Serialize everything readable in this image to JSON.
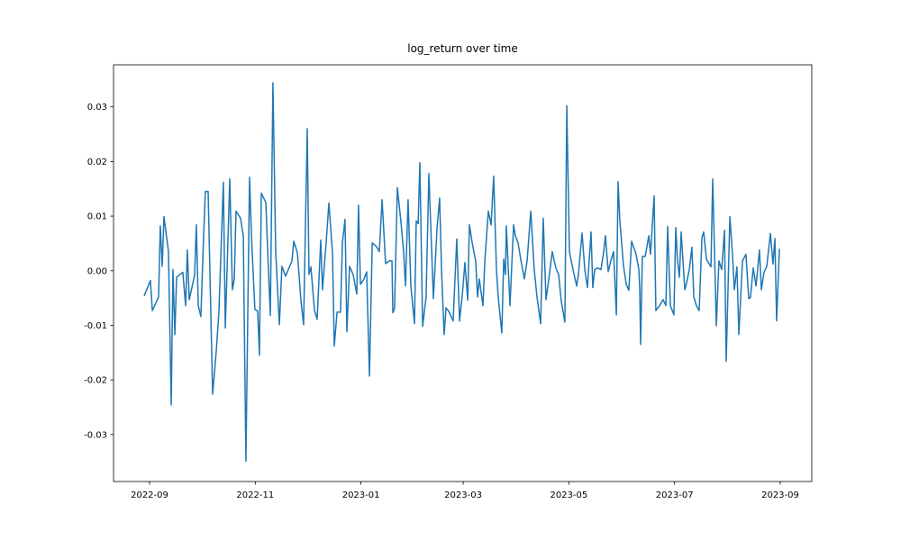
{
  "chart_data": {
    "type": "line",
    "title": "log_return over time",
    "color": "#1f77b4",
    "x": [
      19232.9,
      19236.5,
      19237.6,
      19241.2,
      19242.2,
      19243.3,
      19244.3,
      19246.9,
      19248.5,
      19249.5,
      19250.6,
      19251.6,
      19255.2,
      19256.8,
      19257.8,
      19258.9,
      19262.0,
      19263.0,
      19264.1,
      19265.6,
      19267.2,
      19268.2,
      19269.8,
      19270.8,
      19272.4,
      19274.5,
      19276.0,
      19278.6,
      19279.7,
      19281.2,
      19282.3,
      19283.8,
      19284.9,
      19285.9,
      19288.5,
      19290.1,
      19291.6,
      19293.7,
      19294.8,
      19296.8,
      19298.4,
      19299.4,
      19300.5,
      19303.1,
      19304.6,
      19305.7,
      19307.2,
      19308.8,
      19310.9,
      19312.4,
      19314.5,
      19316.1,
      19318.2,
      19319.2,
      19321.3,
      19323.4,
      19324.9,
      19327.0,
      19328.0,
      19329.1,
      19331.2,
      19332.7,
      19334.8,
      19335.8,
      19337.9,
      19339.5,
      19341.6,
      19342.6,
      19344.2,
      19346.2,
      19347.3,
      19348.8,
      19349.9,
      19351.4,
      19353.5,
      19355.6,
      19356.6,
      19357.7,
      19359.8,
      19361.3,
      19362.9,
      19364.5,
      19367.0,
      19368.6,
      19370.2,
      19372.2,
      19374.3,
      19375.9,
      19376.4,
      19377.4,
      19379.0,
      19381.1,
      19382.6,
      19383.7,
      19385.2,
      19386.8,
      19388.9,
      19389.9,
      19391.0,
      19392.0,
      19393.6,
      19395.6,
      19397.2,
      19399.8,
      19401.9,
      19403.4,
      19404.5,
      19406.0,
      19407.1,
      19408.6,
      19411.2,
      19413.3,
      19414.9,
      19416.4,
      19418.0,
      19419.6,
      19420.6,
      19422.2,
      19424.2,
      19425.3,
      19426.3,
      19428.4,
      19429.5,
      19431.5,
      19433.1,
      19434.6,
      19436.2,
      19437.2,
      19439.3,
      19440.4,
      19441.4,
      19441.9,
      19444.0,
      19446.1,
      19447.1,
      19448.7,
      19450.2,
      19452.3,
      19453.9,
      19456.0,
      19458.0,
      19459.6,
      19461.7,
      19463.2,
      19464.8,
      19466.4,
      19468.4,
      19470.5,
      19472.1,
      19473.6,
      19475.7,
      19476.8,
      19478.3,
      19480.4,
      19482.5,
      19483.5,
      19485.6,
      19487.2,
      19488.7,
      19490.8,
      19491.8,
      19492.9,
      19494.4,
      19496.5,
      19498.1,
      19499.1,
      19500.7,
      19502.2,
      19503.8,
      19505.4,
      19506.4,
      19507.4,
      19509.5,
      19511.1,
      19512.6,
      19514.2,
      19516.8,
      19518.4,
      19518.9,
      19519.4,
      19520.4,
      19522.0,
      19523.0,
      19524.1,
      19525.1,
      19527.2,
      19528.2,
      19530.3,
      19532.4,
      19534.0,
      19535.0,
      19536.6,
      19538.6,
      19539.7,
      19540.7,
      19541.8,
      19542.8,
      19544.9,
      19545.9,
      19547.5,
      19549.0,
      19550.1,
      19551.6,
      19553.2,
      19554.8,
      19555.8,
      19557.4,
      19560.0,
      19561.0,
      19563.1,
      19564.6,
      19566.2,
      19567.8,
      19568.8,
      19570.9,
      19572.4,
      19573.5,
      19575.0,
      19576.1,
      19578.2,
      19580.2,
      19581.8,
      19582.8,
      19584.4,
      19586.0,
      19588.0,
      19589.1,
      19590.6,
      19592.2,
      19594.3,
      19595.8,
      19596.9,
      19597.9,
      19599.5
    ],
    "values": [
      -0.0046,
      -0.0018,
      -0.0073,
      -0.0048,
      0.0082,
      0.0008,
      0.0099,
      0.0035,
      -0.0246,
      0.0002,
      -0.0117,
      -0.0012,
      -0.0003,
      -0.0064,
      0.0038,
      -0.0053,
      -0.0008,
      0.0084,
      -0.0064,
      -0.0084,
      0.0064,
      0.0145,
      0.0145,
      0.0002,
      -0.0226,
      -0.0147,
      -0.0077,
      0.0162,
      -0.0105,
      0.0051,
      0.0168,
      -0.0035,
      -0.0015,
      0.0109,
      0.0096,
      0.0064,
      -0.0349,
      0.0171,
      0.0064,
      -0.0071,
      -0.0074,
      -0.0155,
      0.0142,
      0.0125,
      0.0002,
      -0.0082,
      0.0344,
      0.0035,
      -0.0099,
      0.0008,
      -0.001,
      0.0002,
      0.0018,
      0.0054,
      0.0033,
      -0.0056,
      -0.0099,
      0.026,
      -0.0007,
      0.0007,
      -0.0073,
      -0.0089,
      0.0056,
      -0.0035,
      0.0051,
      0.0124,
      0.0031,
      -0.0138,
      -0.0076,
      -0.0076,
      0.0051,
      0.0094,
      -0.0112,
      0.0008,
      -0.0007,
      -0.0043,
      0.012,
      -0.0025,
      -0.0015,
      -0.0002,
      -0.0193,
      0.0051,
      0.0044,
      0.0035,
      0.013,
      0.0013,
      0.0018,
      0.0018,
      -0.0077,
      -0.0069,
      0.0152,
      0.0089,
      0.0035,
      -0.0028,
      0.013,
      -0.0028,
      -0.0097,
      0.0091,
      0.0086,
      0.0198,
      -0.0102,
      -0.0048,
      0.0178,
      -0.0051,
      0.0077,
      0.0133,
      0.0002,
      -0.0117,
      -0.0068,
      -0.0074,
      -0.0092,
      0.0058,
      -0.0092,
      -0.0048,
      0.0015,
      -0.0054,
      0.0084,
      0.0051,
      0.0018,
      -0.0048,
      -0.0015,
      -0.0064,
      0.0018,
      0.0109,
      0.0084,
      0.0173,
      0.0002,
      -0.0048,
      -0.0114,
      0.0021,
      -0.0007,
      0.0082,
      -0.0064,
      0.0084,
      0.0064,
      0.0051,
      0.0021,
      -0.0015,
      0.0018,
      0.0109,
      0.0002,
      -0.0048,
      -0.0097,
      0.0096,
      -0.0053,
      -0.0016,
      0.0035,
      0.0005,
      -0.0007,
      -0.0056,
      -0.0094,
      0.0302,
      0.0035,
      0.0002,
      -0.0028,
      -0.0007,
      0.0069,
      0.0002,
      -0.0031,
      0.0071,
      -0.0031,
      0.0002,
      0.0005,
      0.0002,
      0.0035,
      0.0064,
      -0.0002,
      0.0018,
      0.0035,
      -0.0081,
      0.0163,
      0.0092,
      0.001,
      -0.0025,
      -0.0036,
      0.0054,
      0.003,
      0.0002,
      -0.0035,
      -0.0135,
      0.0026,
      0.0026,
      0.0043,
      0.0064,
      0.003,
      0.0137,
      -0.0073,
      -0.0064,
      -0.0053,
      -0.0064,
      0.0081,
      -0.0064,
      -0.0081,
      0.0079,
      0.0018,
      -0.0012,
      0.0071,
      -0.0035,
      -0.0023,
      0.0002,
      0.0043,
      -0.0048,
      -0.0064,
      -0.0073,
      0.0061,
      0.0071,
      0.0021,
      0.0007,
      0.0168,
      -0.0101,
      0.0018,
      0.0002,
      0.0074,
      -0.0166,
      0.0099,
      0.0031,
      -0.0035,
      0.0007,
      -0.0117,
      0.0018,
      0.003,
      -0.0051,
      -0.0049,
      0.0005,
      -0.0028,
      0.0038,
      -0.0035,
      -0.0003,
      0.0008,
      0.0068,
      0.0012,
      0.0059,
      -0.0092,
      0.004
    ],
    "xlim": [
      19215.2,
      19618.2
    ],
    "xticks": [
      {
        "value": 19236,
        "label": "2022-09"
      },
      {
        "value": 19297,
        "label": "2022-11"
      },
      {
        "value": 19358,
        "label": "2023-01"
      },
      {
        "value": 19417,
        "label": "2023-03"
      },
      {
        "value": 19478,
        "label": "2023-05"
      },
      {
        "value": 19539,
        "label": "2023-07"
      },
      {
        "value": 19600,
        "label": "2023-09"
      }
    ],
    "ylim": [
      -0.0386,
      0.0377
    ],
    "yticks": [
      -0.03,
      -0.02,
      -0.01,
      {
        "value": 0,
        "label": "0.00"
      },
      0.01,
      0.02,
      0.03
    ],
    "grid": false
  }
}
